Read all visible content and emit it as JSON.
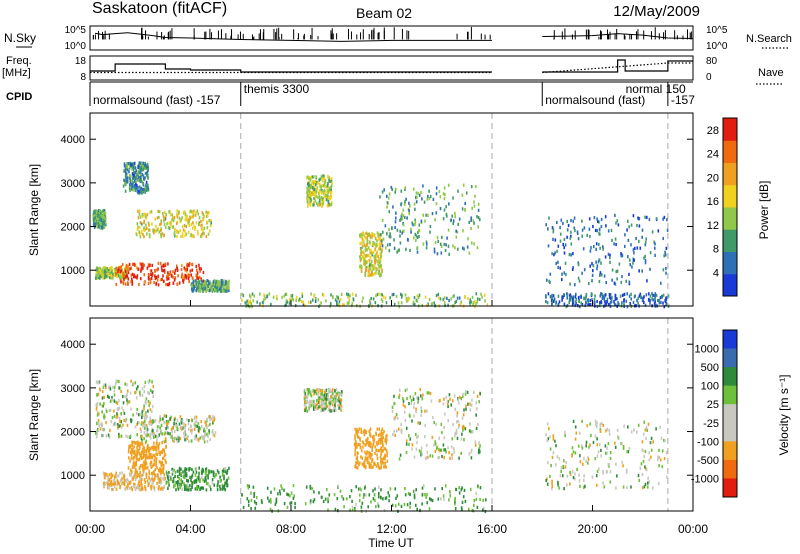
{
  "header": {
    "title": "Saskatoon (fitACF)",
    "beam": "Beam 02",
    "date": "12/May/2009"
  },
  "left_labels": {
    "nsky": "N.Sky",
    "freq_line1": "Freq.",
    "freq_line2": "[MHz]",
    "cpid": "CPID"
  },
  "right_labels": {
    "nsearch": "N.Search",
    "nave": "Nave"
  },
  "chart_data": [
    {
      "type": "line",
      "panel": "noise",
      "ylabel": "N.Sky",
      "y2label": "N.Search",
      "ytick_labels": [
        "10^5",
        "10^0"
      ],
      "y2tick_labels": [
        "10^5",
        "10^0"
      ],
      "log_scale": true,
      "xlim_hours": [
        0,
        24
      ],
      "data_gap_hours": [
        16.0,
        18.0
      ],
      "series": [
        {
          "name": "N.Sky",
          "style": "solid",
          "x": [
            0.2,
            0.5,
            1.0,
            1.5,
            2.0,
            2.5,
            3.0,
            4.0,
            6.0,
            8.0,
            10.0,
            12.0,
            14.0,
            16.0,
            18.0,
            19.0,
            20.0,
            21.0,
            22.0,
            23.0,
            24.0
          ],
          "y": [
            3.5,
            3.2,
            3.4,
            3.6,
            3.3,
            3.0,
            2.6,
            2.5,
            2.2,
            2.0,
            1.8,
            2.0,
            2.0,
            2.0,
            2.8,
            2.9,
            3.0,
            3.4,
            3.1,
            2.5,
            2.4
          ]
        }
      ]
    },
    {
      "type": "line",
      "panel": "frequency",
      "ylabel": "Freq. [MHz]",
      "y2label": "Nave",
      "ytick_labels": [
        "18",
        "8"
      ],
      "y2tick_labels": [
        "80",
        "0"
      ],
      "ylim": [
        8,
        18
      ],
      "y2lim": [
        0,
        80
      ],
      "series": [
        {
          "name": "Freq.",
          "style": "solid",
          "x": [
            0.0,
            1.0,
            1.0,
            3.0,
            3.0,
            4.0,
            4.0,
            6.0,
            6.0,
            16.0,
            18.0,
            21.0,
            21.0,
            21.3,
            21.3,
            23.0,
            23.0,
            24.0
          ],
          "y": [
            11.5,
            11.5,
            15.0,
            15.0,
            12.5,
            12.5,
            12.0,
            12.0,
            11.0,
            11.0,
            11.0,
            11.0,
            17.0,
            17.0,
            11.5,
            11.5,
            16.5,
            16.5
          ]
        },
        {
          "name": "Nave",
          "style": "dotted",
          "x": [
            0.0,
            16.0,
            18.0,
            23.0,
            24.0
          ],
          "y": [
            22,
            22,
            22,
            60,
            60
          ]
        }
      ]
    },
    {
      "type": "table",
      "panel": "cpid",
      "segments": [
        {
          "label": "normalsound (fast)  -157",
          "start": 0.0,
          "end": 6.0
        },
        {
          "label": "themis 3300",
          "start": 6.0,
          "end": 16.0
        },
        {
          "label": "normalsound (fast)",
          "start": 18.0,
          "end": 23.0
        },
        {
          "label": "normal 150",
          "start": 21.0,
          "end": 23.0
        },
        {
          "label": "-157",
          "start": 23.0,
          "end": 24.0
        }
      ]
    },
    {
      "type": "heatmap",
      "panel": "power",
      "ylabel": "Slant Range [km]",
      "yticks": [
        1000,
        2000,
        3000,
        4000
      ],
      "ylim": [
        180,
        4600
      ],
      "xlim_hours": [
        0,
        24
      ],
      "colorbar_label": "Power [dB]",
      "colorbar_ticks": [
        4,
        8,
        12,
        16,
        20,
        24,
        28
      ],
      "colorbar_range": [
        0,
        30
      ],
      "colors": [
        "#1a3ad8",
        "#2f6fb8",
        "#3f9a6a",
        "#90c84a",
        "#f0d020",
        "#f0a020",
        "#f06a10",
        "#e01e10"
      ],
      "echo_regions": [
        {
          "t": [
            0.2,
            1.5
          ],
          "r": [
            850,
            1100
          ],
          "level": 14
        },
        {
          "t": [
            1.0,
            4.5
          ],
          "r": [
            700,
            1200
          ],
          "level": 27
        },
        {
          "t": [
            1.8,
            4.8
          ],
          "r": [
            1800,
            2400
          ],
          "level": 16
        },
        {
          "t": [
            1.3,
            2.3
          ],
          "r": [
            2800,
            3500
          ],
          "level": 8
        },
        {
          "t": [
            0.1,
            0.6
          ],
          "r": [
            2000,
            2400
          ],
          "level": 10
        },
        {
          "t": [
            4.0,
            5.5
          ],
          "r": [
            550,
            800
          ],
          "level": 10
        },
        {
          "t": [
            6.0,
            15.8
          ],
          "r": [
            200,
            500
          ],
          "level": 12
        },
        {
          "t": [
            8.6,
            9.6
          ],
          "r": [
            2500,
            3200
          ],
          "level": 14
        },
        {
          "t": [
            10.7,
            11.6
          ],
          "r": [
            900,
            1900
          ],
          "level": 16
        },
        {
          "t": [
            11.5,
            15.5
          ],
          "r": [
            1400,
            3000
          ],
          "level": 10
        },
        {
          "t": [
            18.1,
            23.0
          ],
          "r": [
            700,
            2300
          ],
          "level": 6
        },
        {
          "t": [
            18.1,
            23.0
          ],
          "r": [
            200,
            500
          ],
          "level": 5
        }
      ]
    },
    {
      "type": "heatmap",
      "panel": "velocity",
      "ylabel": "Slant Range [km]",
      "yticks": [
        1000,
        2000,
        3000,
        4000
      ],
      "ylim": [
        180,
        4600
      ],
      "xlim_hours": [
        0,
        24
      ],
      "colorbar_label": "Velocity [m s⁻¹]",
      "colorbar_ticks": [
        1000,
        500,
        100,
        25,
        -25,
        -100,
        -500,
        -1000
      ],
      "colors": [
        "#1a3ad8",
        "#3a6bb0",
        "#2e8b3a",
        "#6cc03a",
        "#c8c8c0",
        "#c8c8c0",
        "#f0a020",
        "#f06a10",
        "#e01e10"
      ],
      "echo_regions": [
        {
          "t": [
            0.2,
            2.5
          ],
          "r": [
            1900,
            3200
          ],
          "v": 0
        },
        {
          "t": [
            0.5,
            3.0
          ],
          "r": [
            700,
            1100
          ],
          "v": -150
        },
        {
          "t": [
            1.5,
            3.0
          ],
          "r": [
            1100,
            1800
          ],
          "v": -300
        },
        {
          "t": [
            3.0,
            5.5
          ],
          "r": [
            700,
            1200
          ],
          "v": 150
        },
        {
          "t": [
            2.0,
            5.0
          ],
          "r": [
            1800,
            2400
          ],
          "v": 0
        },
        {
          "t": [
            6.0,
            15.8
          ],
          "r": [
            200,
            800
          ],
          "v": 150
        },
        {
          "t": [
            8.5,
            10.0
          ],
          "r": [
            2500,
            3000
          ],
          "v": 0
        },
        {
          "t": [
            10.5,
            11.8
          ],
          "r": [
            1200,
            2100
          ],
          "v": -350
        },
        {
          "t": [
            12.0,
            15.5
          ],
          "r": [
            1400,
            3000
          ],
          "v": 0
        },
        {
          "t": [
            18.1,
            23.0
          ],
          "r": [
            700,
            2300
          ],
          "v": 0
        }
      ]
    }
  ],
  "x_axis": {
    "tick_labels": [
      "00:00",
      "04:00",
      "08:00",
      "12:00",
      "16:00",
      "20:00",
      "00:00"
    ],
    "label": "Time UT"
  }
}
